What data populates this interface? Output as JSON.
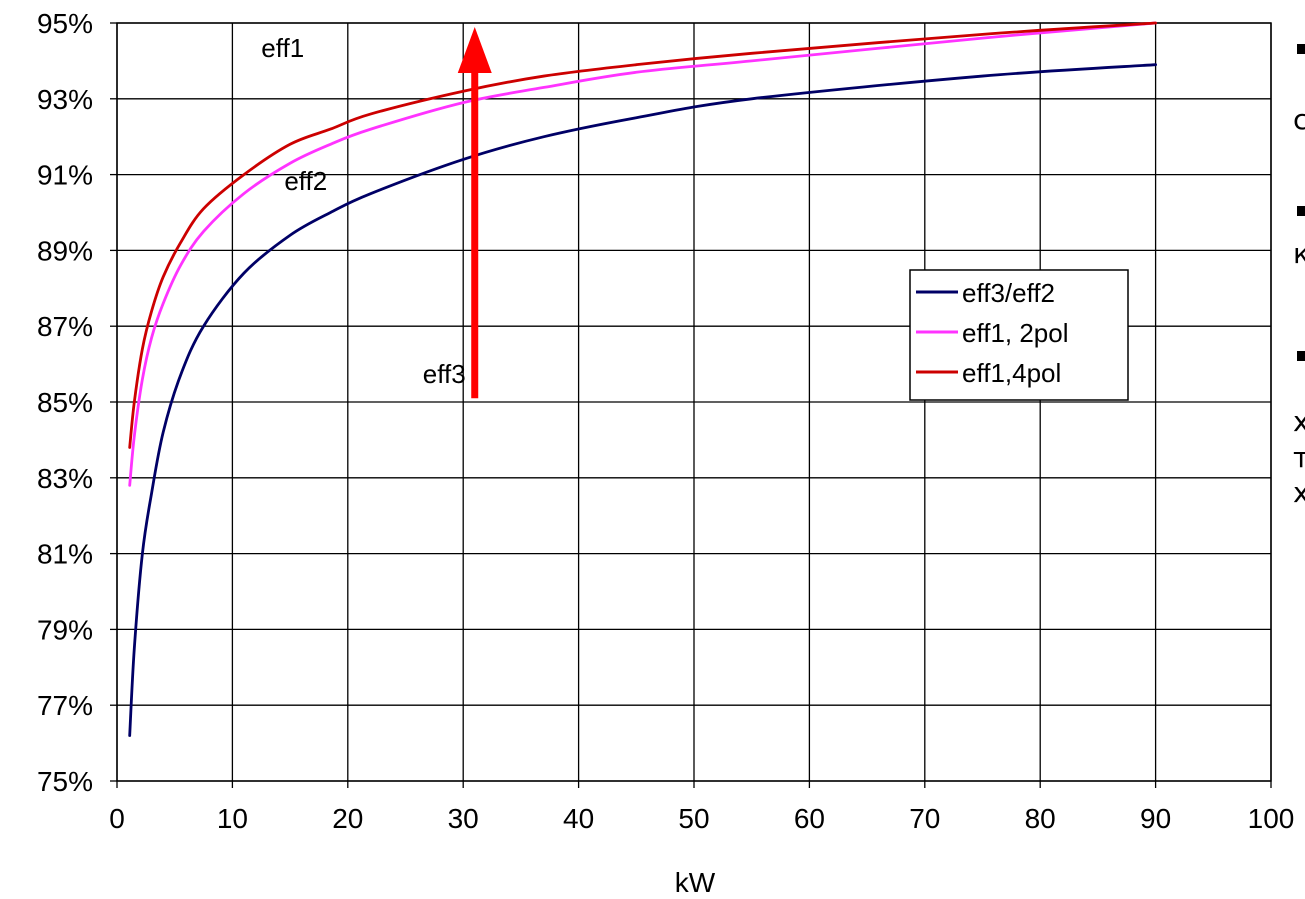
{
  "chart_data": {
    "type": "line",
    "xlabel": "kW",
    "ylabel": "",
    "xlim": [
      0,
      100
    ],
    "ylim": [
      75,
      95
    ],
    "x_ticks": [
      0,
      10,
      20,
      30,
      40,
      50,
      60,
      70,
      80,
      90,
      100
    ],
    "x_tick_labels": [
      "0",
      "10",
      "20",
      "30",
      "40",
      "50",
      "60",
      "70",
      "80",
      "90",
      "100"
    ],
    "y_ticks": [
      75,
      77,
      79,
      81,
      83,
      85,
      87,
      89,
      91,
      93,
      95
    ],
    "y_tick_labels": [
      "75%",
      "77%",
      "79%",
      "81%",
      "83%",
      "85%",
      "87%",
      "89%",
      "91%",
      "93%",
      "95%"
    ],
    "grid": true,
    "legend_position": "right-middle",
    "series": [
      {
        "name": "eff3/eff2",
        "color": "#000066",
        "x": [
          1.1,
          1.5,
          2.2,
          3,
          4,
          5.5,
          7.5,
          11,
          15,
          18.5,
          22,
          30,
          37,
          45,
          55,
          75,
          90
        ],
        "y": [
          76.2,
          78.5,
          81.0,
          82.6,
          84.2,
          85.7,
          87.0,
          88.4,
          89.4,
          90.0,
          90.5,
          91.4,
          92.0,
          92.5,
          93.0,
          93.6,
          93.9
        ]
      },
      {
        "name": "eff1, 2pol",
        "color": "#ff33ff",
        "x": [
          1.1,
          1.5,
          2.2,
          3,
          4,
          5.5,
          7.5,
          11,
          15,
          18.5,
          22,
          30,
          37,
          45,
          55,
          75,
          90
        ],
        "y": [
          82.8,
          84.1,
          85.6,
          86.7,
          87.6,
          88.6,
          89.5,
          90.5,
          91.3,
          91.8,
          92.2,
          92.9,
          93.3,
          93.7,
          94.0,
          94.6,
          95.0
        ]
      },
      {
        "name": "eff1,4pol",
        "color": "#cc0000",
        "x": [
          1.1,
          1.5,
          2.2,
          3,
          4,
          5.5,
          7.5,
          11,
          15,
          18.5,
          22,
          30,
          37,
          45,
          55,
          75,
          90
        ],
        "y": [
          83.8,
          85.0,
          86.4,
          87.4,
          88.3,
          89.2,
          90.1,
          91.0,
          91.8,
          92.2,
          92.6,
          93.2,
          93.6,
          93.9,
          94.2,
          94.7,
          95.0
        ]
      }
    ],
    "annotations": [
      {
        "text": "eff1",
        "x": 12.5,
        "y": 94.1
      },
      {
        "text": "eff2",
        "x": 14.5,
        "y": 90.6
      },
      {
        "text": "eff3",
        "x": 26.5,
        "y": 85.5
      }
    ],
    "arrow": {
      "color": "#ff0000",
      "x": 31,
      "y_from": 85.1,
      "y_to": 95
    }
  },
  "side_panel": {
    "fragments": [
      "с",
      "к",
      "х",
      "т",
      "х"
    ]
  }
}
